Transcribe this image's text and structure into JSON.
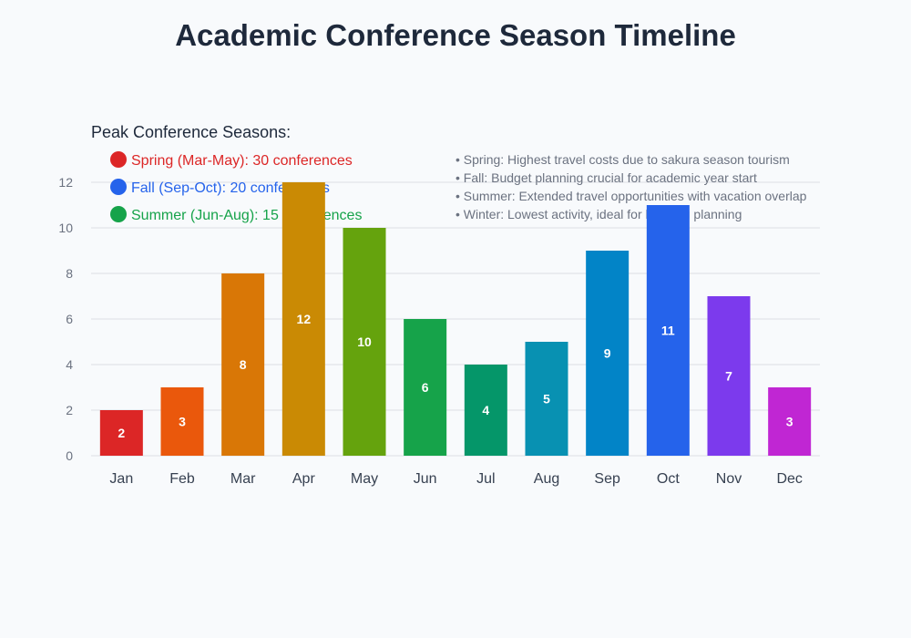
{
  "chart_data": {
    "type": "bar",
    "title": "Academic Conference Season Timeline",
    "categories": [
      "Jan",
      "Feb",
      "Mar",
      "Apr",
      "May",
      "Jun",
      "Jul",
      "Aug",
      "Sep",
      "Oct",
      "Nov",
      "Dec"
    ],
    "values": [
      2,
      3,
      8,
      12,
      10,
      6,
      4,
      5,
      9,
      11,
      7,
      3
    ],
    "colors": [
      "#dc2626",
      "#ea580c",
      "#d97706",
      "#ca8a04",
      "#65a30d",
      "#16a34a",
      "#059669",
      "#0891b2",
      "#0284c7",
      "#2563eb",
      "#7c3aed",
      "#c026d3"
    ],
    "ylim": [
      0,
      12
    ],
    "yticks": [
      "0",
      "2",
      "4",
      "6",
      "8",
      "10",
      "12"
    ],
    "grid": true,
    "xlabel": "",
    "ylabel": ""
  },
  "annotations": {
    "heading": "Peak Conference Seasons:",
    "seasons": [
      {
        "label": "Spring (Mar-May): 30 conferences",
        "color": "#dc2626"
      },
      {
        "label": "Fall (Sep-Oct): 20 conferences",
        "color": "#2563eb"
      },
      {
        "label": "Summer (Jun-Aug): 15 conferences",
        "color": "#16a34a"
      }
    ],
    "notes": [
      "• Spring: Highest travel costs due to sakura season tourism",
      "• Fall: Budget planning crucial for academic year start",
      "• Summer: Extended travel opportunities with vacation overlap",
      "• Winter: Lowest activity, ideal for housing planning"
    ]
  }
}
